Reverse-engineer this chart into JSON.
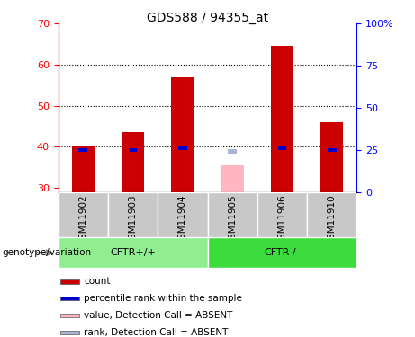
{
  "title": "GDS588 / 94355_at",
  "samples": [
    "GSM11902",
    "GSM11903",
    "GSM11904",
    "GSM11905",
    "GSM11906",
    "GSM11910"
  ],
  "count_values": [
    40.0,
    43.5,
    57.0,
    null,
    64.5,
    46.0
  ],
  "count_absent": [
    null,
    null,
    null,
    35.5,
    null,
    null
  ],
  "rank_values_pct": [
    25,
    25,
    26,
    null,
    26,
    25
  ],
  "rank_absent_pct": [
    null,
    null,
    null,
    24,
    null,
    null
  ],
  "ylim_left": [
    29,
    70
  ],
  "ylim_right": [
    0,
    100
  ],
  "yticks_left": [
    30,
    40,
    50,
    60,
    70
  ],
  "yticks_right": [
    0,
    25,
    50,
    75,
    100
  ],
  "ytick_labels_right": [
    "0",
    "25",
    "50",
    "75",
    "100%"
  ],
  "groups": [
    {
      "label": "CFTR+/+",
      "color": "#90ee90",
      "start": 0,
      "end": 2
    },
    {
      "label": "CFTR-/-",
      "color": "#3ddc3d",
      "start": 3,
      "end": 5
    }
  ],
  "count_color": "#cc0000",
  "count_absent_color": "#ffb6c1",
  "rank_color": "#0000cc",
  "rank_absent_color": "#aab4d4",
  "bg_color": "#c8c8c8",
  "plot_bg": "#ffffff",
  "legend_items": [
    {
      "color": "#cc0000",
      "label": "count"
    },
    {
      "color": "#0000cc",
      "label": "percentile rank within the sample"
    },
    {
      "color": "#ffb6c1",
      "label": "value, Detection Call = ABSENT"
    },
    {
      "color": "#aab4d4",
      "label": "rank, Detection Call = ABSENT"
    }
  ],
  "genotype_label": "genotype/variation",
  "title_fontsize": 10,
  "tick_fontsize": 8
}
